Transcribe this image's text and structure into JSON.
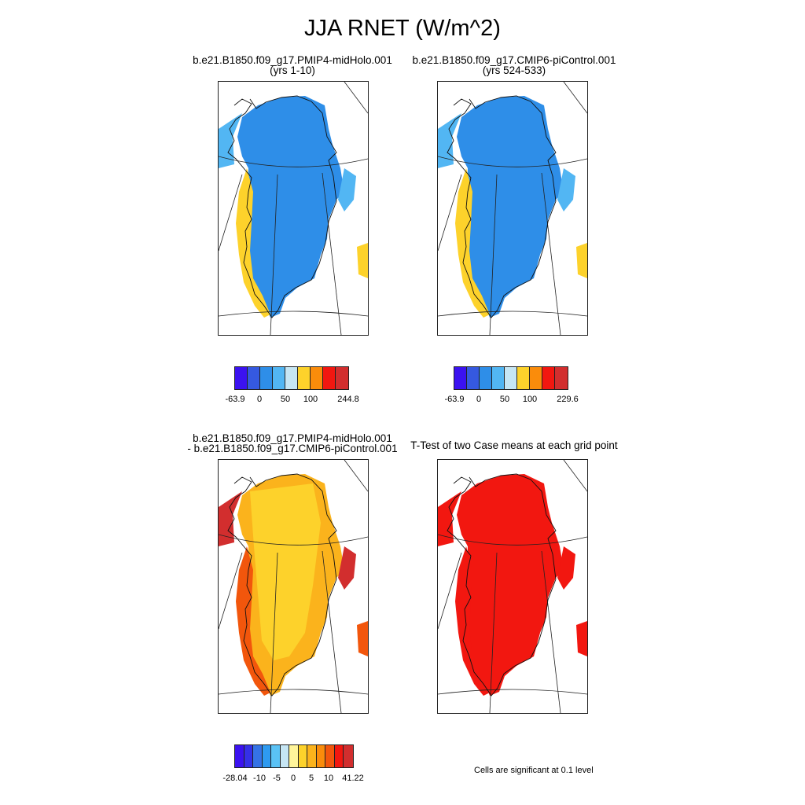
{
  "title": "JJA RNET (W/m^2)",
  "panels": [
    {
      "line1": "b.e21.B1850.f09_g17.PMIP4-midHolo.001",
      "line2": "(yrs 1-10)"
    },
    {
      "line1": "b.e21.B1850.f09_g17.CMIP6-piControl.001",
      "line2": "(yrs 524-533)"
    },
    {
      "line1": "b.e21.B1850.f09_g17.PMIP4-midHolo.001",
      "line2": "- b.e21.B1850.f09_g17.CMIP6-piControl.001"
    },
    {
      "line1": "T-Test of two Case means at each grid point",
      "line2": ""
    }
  ],
  "colorbars": [
    {
      "colors": [
        "#3b12f0",
        "#3559e0",
        "#2e8ee8",
        "#52b6f3",
        "#c6e6f4",
        "#fdd22b",
        "#fa8c0b",
        "#f21710",
        "#d22e2e"
      ],
      "labels": [
        "-63.9",
        "0",
        "50",
        "100",
        "244.8"
      ]
    },
    {
      "colors": [
        "#3b12f0",
        "#3559e0",
        "#2e8ee8",
        "#52b6f3",
        "#c6e6f4",
        "#fdd22b",
        "#fa8c0b",
        "#f21710",
        "#d22e2e"
      ],
      "labels": [
        "-63.9",
        "0",
        "50",
        "100",
        "229.6"
      ]
    },
    {
      "colors": [
        "#3b12f0",
        "#3530e8",
        "#3573e6",
        "#2e9af0",
        "#5ac2f5",
        "#c6e6f4",
        "#fff59a",
        "#fdd22b",
        "#fbb31c",
        "#fa8c0b",
        "#f2560c",
        "#f21710",
        "#d22e2e"
      ],
      "labels": [
        "-28.04",
        "-10",
        "-5",
        "0",
        "5",
        "10",
        "41.22"
      ]
    }
  ],
  "note": "Cells are significant at 0.1 level"
}
